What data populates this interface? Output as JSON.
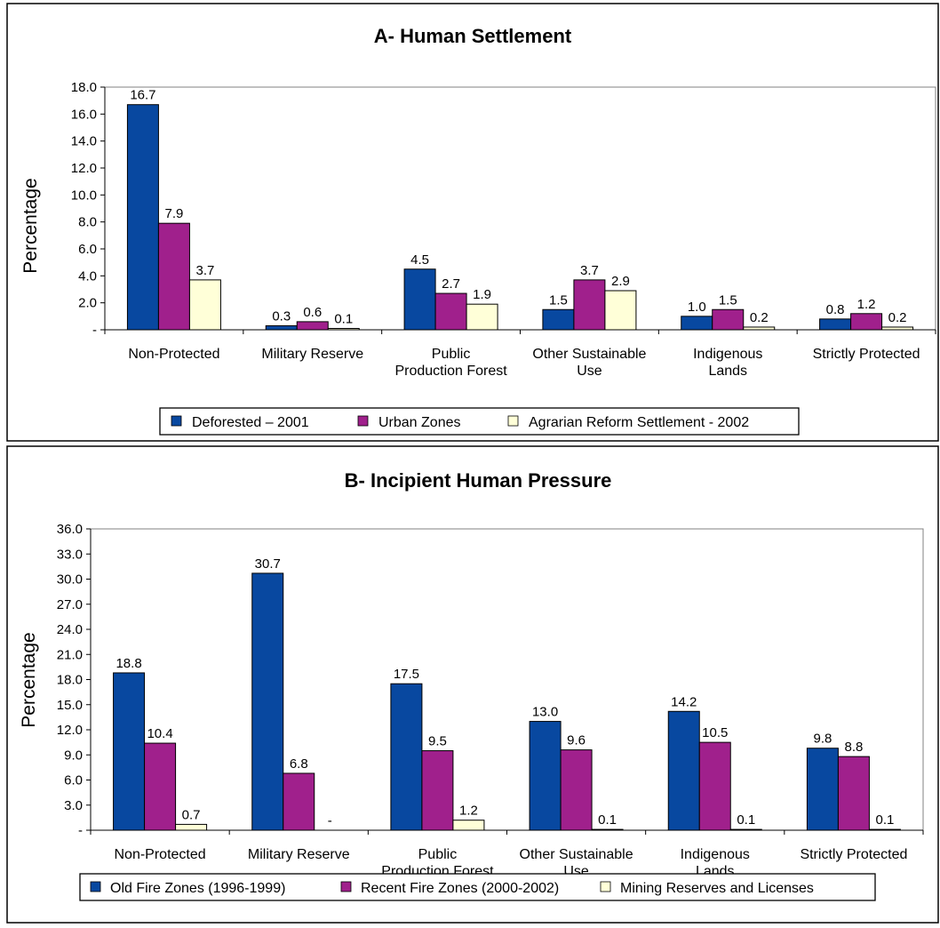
{
  "chart_data": [
    {
      "type": "bar",
      "title": "A- Human Settlement",
      "ylabel": "Percentage",
      "xlabel": "",
      "ylim": [
        0,
        18
      ],
      "yticks": [
        "-",
        "2.0",
        "4.0",
        "6.0",
        "8.0",
        "10.0",
        "12.0",
        "14.0",
        "16.0",
        "18.0"
      ],
      "categories": [
        [
          "Non-Protected"
        ],
        [
          "Military Reserve"
        ],
        [
          "Public",
          "Production Forest"
        ],
        [
          "Other Sustainable",
          "Use"
        ],
        [
          "Indigenous",
          "Lands"
        ],
        [
          "Strictly Protected"
        ]
      ],
      "series": [
        {
          "name": "Deforested – 2001",
          "color": "#0848a0",
          "values": [
            16.7,
            0.3,
            4.5,
            1.5,
            1.0,
            0.8
          ],
          "labels": [
            "16.7",
            "0.3",
            "4.5",
            "1.5",
            "1.0",
            "0.8"
          ]
        },
        {
          "name": "Urban Zones",
          "color": "#a0208c",
          "values": [
            7.9,
            0.6,
            2.7,
            3.7,
            1.5,
            1.2
          ],
          "labels": [
            "7.9",
            "0.6",
            "2.7",
            "3.7",
            "1.5",
            "1.2"
          ]
        },
        {
          "name": "Agrarian Reform Settlement - 2002",
          "color": "#ffffd8",
          "values": [
            3.7,
            0.1,
            1.9,
            2.9,
            0.2,
            0.2
          ],
          "labels": [
            "3.7",
            "0.1",
            "1.9",
            "2.9",
            "0.2",
            "0.2"
          ]
        }
      ],
      "grid": false,
      "legend": "bottom"
    },
    {
      "type": "bar",
      "title": "B- Incipient Human Pressure",
      "ylabel": "Percentage",
      "xlabel": "",
      "ylim": [
        0,
        36
      ],
      "yticks": [
        "-",
        "3.0",
        "6.0",
        "9.0",
        "12.0",
        "15.0",
        "18.0",
        "21.0",
        "24.0",
        "27.0",
        "30.0",
        "33.0",
        "36.0"
      ],
      "categories": [
        [
          "Non-Protected"
        ],
        [
          "Military Reserve"
        ],
        [
          "Public",
          "Production Forest"
        ],
        [
          "Other Sustainable",
          "Use"
        ],
        [
          "Indigenous",
          "Lands"
        ],
        [
          "Strictly Protected"
        ]
      ],
      "series": [
        {
          "name": "Old Fire Zones (1996-1999)",
          "color": "#0848a0",
          "values": [
            18.8,
            30.7,
            17.5,
            13.0,
            14.2,
            9.8
          ],
          "labels": [
            "18.8",
            "30.7",
            "17.5",
            "13.0",
            "14.2",
            "9.8"
          ]
        },
        {
          "name": "Recent Fire Zones (2000-2002)",
          "color": "#a0208c",
          "values": [
            10.4,
            6.8,
            9.5,
            9.6,
            10.5,
            8.8
          ],
          "labels": [
            "10.4",
            "6.8",
            "9.5",
            "9.6",
            "10.5",
            "8.8"
          ]
        },
        {
          "name": "Mining Reserves and Licenses",
          "color": "#ffffd8",
          "values": [
            0.7,
            0,
            1.2,
            0.1,
            0.1,
            0.1
          ],
          "labels": [
            "0.7",
            "-",
            "1.2",
            "0.1",
            "0.1",
            "0.1"
          ]
        }
      ],
      "grid": false,
      "legend": "bottom"
    }
  ]
}
